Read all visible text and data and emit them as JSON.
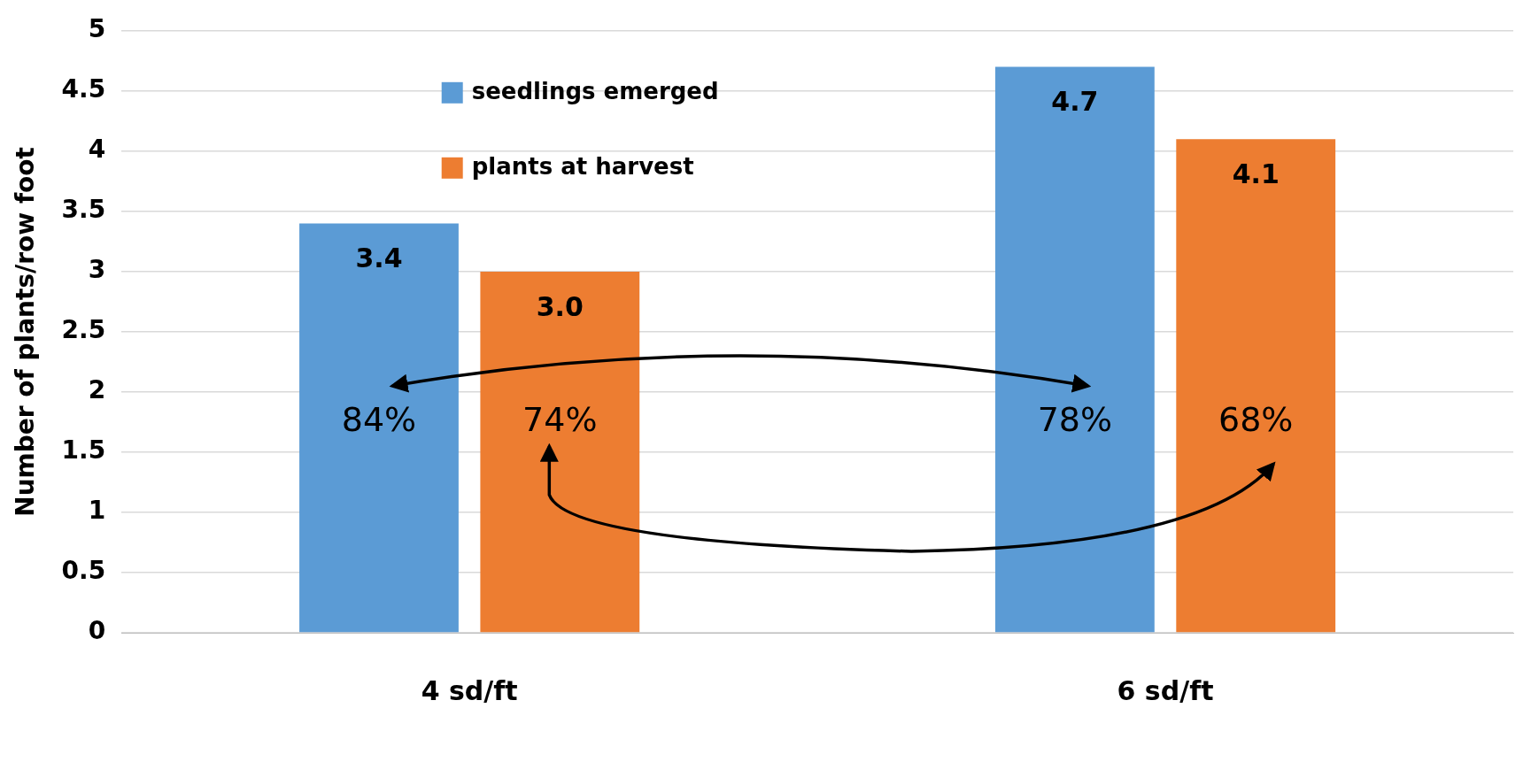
{
  "chart_data": {
    "type": "bar",
    "ylabel": "Number of plants/row foot",
    "categories": [
      "4 sd/ft",
      "6 sd/ft"
    ],
    "series": [
      {
        "name": "seedlings emerged",
        "color": "#5b9bd5",
        "values": [
          3.4,
          4.7
        ],
        "value_labels": [
          "3.4",
          "4.7"
        ]
      },
      {
        "name": "plants at harvest",
        "color": "#ed7d31",
        "values": [
          3.0,
          4.1
        ],
        "value_labels": [
          "3.0",
          "4.1"
        ]
      }
    ],
    "ylim": [
      0,
      5
    ],
    "yticks": [
      0,
      0.5,
      1,
      1.5,
      2,
      2.5,
      3,
      3.5,
      4,
      4.5,
      5
    ],
    "grid": "y",
    "legend": "top",
    "annotations": [
      "84%",
      "74%",
      "78%",
      "68%"
    ]
  }
}
